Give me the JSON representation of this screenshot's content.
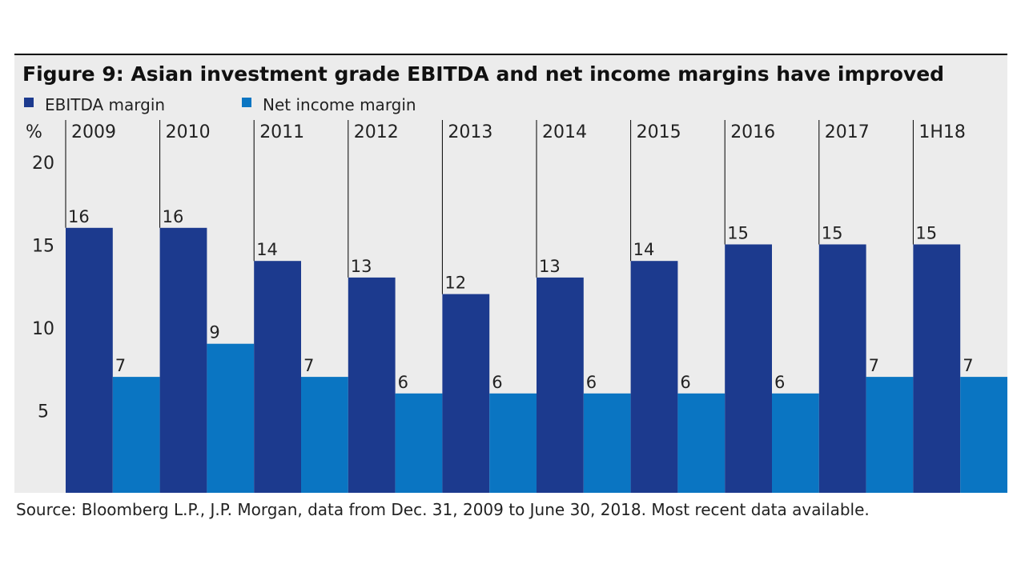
{
  "chart_data": {
    "type": "bar",
    "title": "Figure 9: Asian investment grade EBITDA and net income margins have improved",
    "ylabel": "%",
    "ylim": [
      0,
      20
    ],
    "yticks": [
      5,
      10,
      15,
      20
    ],
    "categories": [
      "2009",
      "2010",
      "2011",
      "2012",
      "2013",
      "2014",
      "2015",
      "2016",
      "2017",
      "1H18"
    ],
    "series": [
      {
        "name": "EBITDA margin",
        "color": "#1c3a8e",
        "values": [
          16,
          16,
          14,
          13,
          12,
          13,
          14,
          15,
          15,
          15
        ]
      },
      {
        "name": "Net income margin",
        "color": "#0a75c2",
        "values": [
          7,
          9,
          7,
          6,
          6,
          6,
          6,
          6,
          7,
          7
        ]
      }
    ],
    "legend_position": "top-left",
    "grid": false,
    "source": "Source: Bloomberg L.P., J.P. Morgan, data from Dec. 31, 2009 to June 30, 2018. Most recent data available."
  },
  "colors": {
    "panel_background": "#ececec",
    "rule": "#000000"
  }
}
